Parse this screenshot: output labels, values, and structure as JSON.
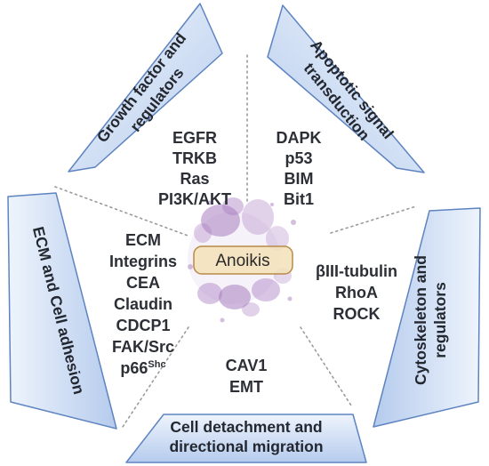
{
  "diagram": {
    "center_label": "Anoikis",
    "colors": {
      "banner_fill_light": "#eef4fc",
      "banner_fill_dark": "#b7cdee",
      "banner_stroke": "#5e84c0",
      "cell_purple": "#a87dc0",
      "center_box_fill": "#f3e2b8",
      "center_box_stroke": "#b88a48",
      "dotted_line": "#9a9a9a",
      "text": "#2c2f36"
    },
    "sections": [
      {
        "id": "growth",
        "banner_lines": [
          "Growth factor and",
          "regulators"
        ],
        "items": [
          "EGFR",
          "TRKB",
          "Ras",
          "PI3K/AKT"
        ]
      },
      {
        "id": "apoptotic",
        "banner_lines": [
          "Apoptotic signal",
          "transduction"
        ],
        "items": [
          "DAPK",
          "p53",
          "BIM",
          "Bit1"
        ]
      },
      {
        "id": "cytoskeleton",
        "banner_lines": [
          "Cytoskeleton and",
          "regulators"
        ],
        "items": [
          "βIII-tubulin",
          "RhoA",
          "ROCK"
        ]
      },
      {
        "id": "detachment",
        "banner_lines": [
          "Cell detachment and",
          "directional migration"
        ],
        "items": [
          "CAV1",
          "EMT"
        ]
      },
      {
        "id": "ecm",
        "banner_lines": [
          "ECM and Cell adhesion"
        ],
        "items": [
          "ECM",
          "Integrins",
          "CEA",
          "Claudin",
          "CDCP1",
          "FAK/Src",
          "p66"
        ],
        "last_item_superscript": "Shc"
      }
    ]
  }
}
